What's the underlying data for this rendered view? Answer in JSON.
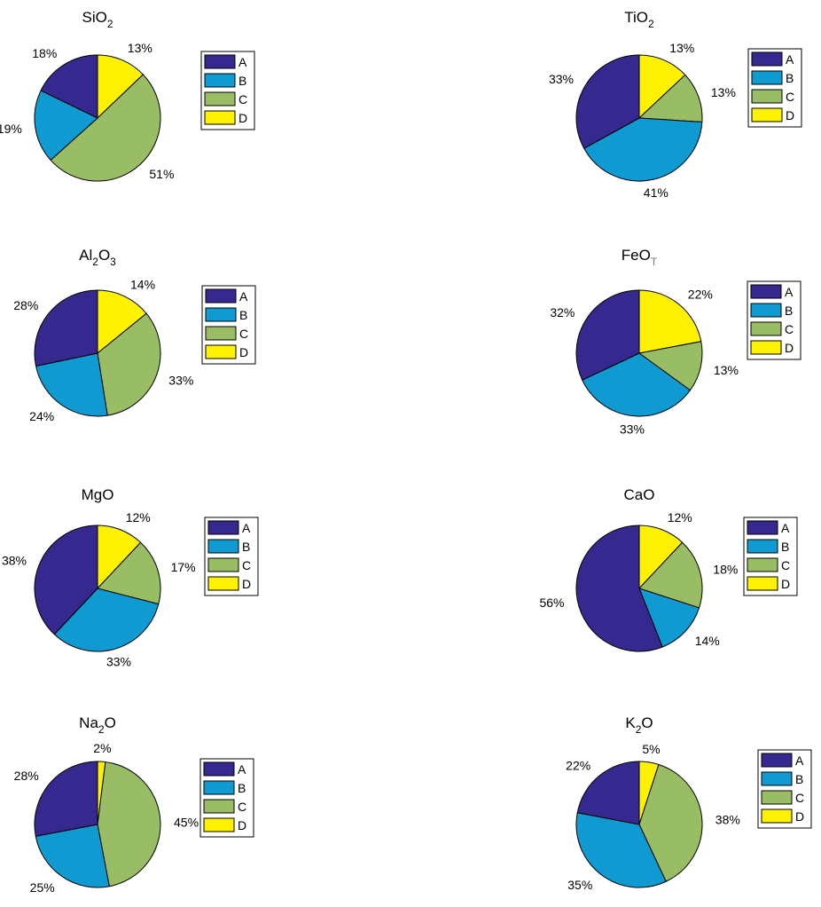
{
  "colors": {
    "A": "#35288e",
    "B": "#0f9ad2",
    "C": "#99bd65",
    "D": "#fff200"
  },
  "chart_data": [
    {
      "type": "pie",
      "title": "SiO2",
      "title_parts": [
        {
          "t": "SiO"
        },
        {
          "t": "2",
          "sub": true
        }
      ],
      "categories": [
        "A",
        "B",
        "C",
        "D"
      ],
      "values": [
        18,
        19,
        51,
        13
      ],
      "labels": [
        "18%",
        "19%",
        "51%",
        "13%"
      ],
      "legend": [
        "A",
        "B",
        "C",
        "D"
      ]
    },
    {
      "type": "pie",
      "title": "TiO2",
      "title_parts": [
        {
          "t": "TiO"
        },
        {
          "t": "2",
          "sub": true
        }
      ],
      "categories": [
        "A",
        "B",
        "C",
        "D"
      ],
      "values": [
        33,
        41,
        13,
        13
      ],
      "labels": [
        "33%",
        "41%",
        "13%",
        "13%"
      ],
      "legend": [
        "A",
        "B",
        "C",
        "D"
      ]
    },
    {
      "type": "pie",
      "title": "Al2O3",
      "title_parts": [
        {
          "t": "Al"
        },
        {
          "t": "2",
          "sub": true
        },
        {
          "t": "O"
        },
        {
          "t": "3",
          "sub": true
        }
      ],
      "categories": [
        "A",
        "B",
        "C",
        "D"
      ],
      "values": [
        28,
        24,
        33,
        14
      ],
      "labels": [
        "28%",
        "24%",
        "33%",
        "14%"
      ],
      "legend": [
        "A",
        "B",
        "C",
        "D"
      ]
    },
    {
      "type": "pie",
      "title": "FeOT",
      "title_parts": [
        {
          "t": "FeO"
        },
        {
          "t": "T",
          "sub": true,
          "light": true
        }
      ],
      "categories": [
        "A",
        "B",
        "C",
        "D"
      ],
      "values": [
        32,
        33,
        13,
        22
      ],
      "labels": [
        "32%",
        "33%",
        "13%",
        "22%"
      ],
      "legend": [
        "A",
        "B",
        "C",
        "D"
      ]
    },
    {
      "type": "pie",
      "title": "MgO",
      "title_parts": [
        {
          "t": "MgO"
        }
      ],
      "categories": [
        "A",
        "B",
        "C",
        "D"
      ],
      "values": [
        38,
        33,
        17,
        12
      ],
      "labels": [
        "38%",
        "33%",
        "17%",
        "12%"
      ],
      "legend": [
        "A",
        "B",
        "C",
        "D"
      ]
    },
    {
      "type": "pie",
      "title": "CaO",
      "title_parts": [
        {
          "t": "CaO"
        }
      ],
      "categories": [
        "A",
        "B",
        "C",
        "D"
      ],
      "values": [
        56,
        14,
        18,
        12
      ],
      "labels": [
        "56%",
        "14%",
        "18%",
        "12%"
      ],
      "legend": [
        "A",
        "B",
        "C",
        "D"
      ]
    },
    {
      "type": "pie",
      "title": "Na2O",
      "title_parts": [
        {
          "t": "Na"
        },
        {
          "t": "2",
          "sub": true
        },
        {
          "t": "O"
        }
      ],
      "categories": [
        "A",
        "B",
        "C",
        "D"
      ],
      "values": [
        28,
        25,
        45,
        2
      ],
      "labels": [
        "28%",
        "25%",
        "45%",
        "2%"
      ],
      "legend": [
        "A",
        "B",
        "C",
        "D"
      ]
    },
    {
      "type": "pie",
      "title": "K2O",
      "title_parts": [
        {
          "t": "K"
        },
        {
          "t": "2",
          "sub": true
        },
        {
          "t": "O"
        }
      ],
      "categories": [
        "A",
        "B",
        "C",
        "D"
      ],
      "values": [
        22,
        35,
        38,
        5
      ],
      "labels": [
        "22%",
        "35%",
        "38%",
        "5%"
      ],
      "legend": [
        "A",
        "B",
        "C",
        "D"
      ]
    }
  ]
}
